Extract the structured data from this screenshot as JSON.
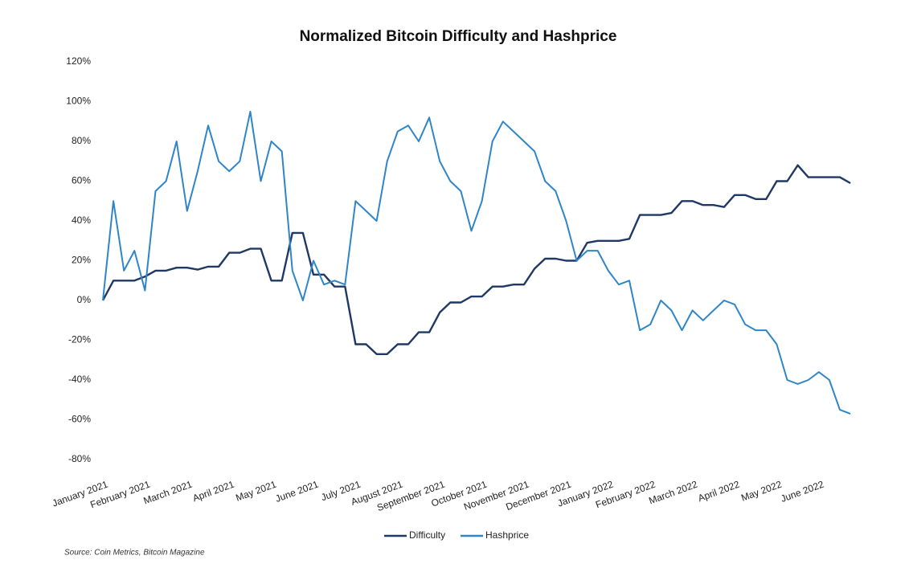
{
  "chart_data": {
    "type": "line",
    "title": "Normalized Bitcoin Difficulty and Hashprice",
    "source": "Source: Coin Metrics, Bitcoin Magazine",
    "categories": [
      "January 2021",
      null,
      null,
      null,
      "February 2021",
      null,
      null,
      null,
      "March 2021",
      null,
      null,
      null,
      "April 2021",
      null,
      null,
      null,
      "May 2021",
      null,
      null,
      null,
      "June 2021",
      null,
      null,
      null,
      "July 2021",
      null,
      null,
      null,
      "August 2021",
      null,
      null,
      null,
      "September 2021",
      null,
      null,
      null,
      "October 2021",
      null,
      null,
      null,
      "November 2021",
      null,
      null,
      null,
      "December 2021",
      null,
      null,
      null,
      "January 2022",
      null,
      null,
      null,
      "February 2022",
      null,
      null,
      null,
      "March 2022",
      null,
      null,
      null,
      "April 2022",
      null,
      null,
      null,
      "May 2022",
      null,
      null,
      null,
      "June 2022",
      null,
      null,
      null
    ],
    "series": [
      {
        "name": "Difficulty",
        "color": "#1f3864",
        "values": [
          0,
          10,
          10,
          10,
          12,
          15,
          15,
          16.5,
          16.5,
          15.5,
          17,
          17,
          24,
          24,
          26,
          26,
          10,
          10,
          34,
          34,
          13,
          13,
          7,
          7,
          -22,
          -22,
          -27,
          -27,
          -22,
          -22,
          -16,
          -16,
          -6,
          -1,
          -1,
          2,
          2,
          7,
          7,
          8,
          8,
          16,
          21,
          21,
          20,
          20,
          29,
          30,
          30,
          30,
          31,
          43,
          43,
          43,
          44,
          50,
          50,
          48,
          48,
          47,
          53,
          53,
          51,
          51,
          60,
          60,
          68,
          62,
          62,
          62,
          62,
          59
        ]
      },
      {
        "name": "Hashprice",
        "color": "#2e86c8",
        "values": [
          0,
          50,
          15,
          25,
          5,
          55,
          60,
          80,
          45,
          65,
          88,
          70,
          65,
          70,
          95,
          60,
          80,
          75,
          15,
          0,
          20,
          8,
          10,
          8,
          50,
          45,
          40,
          70,
          85,
          88,
          80,
          92,
          70,
          60,
          55,
          35,
          50,
          80,
          90,
          85,
          80,
          75,
          60,
          55,
          40,
          20,
          25,
          25,
          15,
          8,
          10,
          -15,
          -12,
          0,
          -5,
          -15,
          -5,
          -10,
          -5,
          0,
          -2,
          -12,
          -15,
          -15,
          -22,
          -40,
          -42,
          -40,
          -36,
          -40,
          -55,
          -57
        ]
      }
    ],
    "ylim": [
      -80,
      120
    ],
    "yticks": [
      {
        "value": -80,
        "label": "-80%"
      },
      {
        "value": -60,
        "label": "-60%"
      },
      {
        "value": -40,
        "label": "-40%"
      },
      {
        "value": -20,
        "label": "-20%"
      },
      {
        "value": 0,
        "label": "0%"
      },
      {
        "value": 20,
        "label": "20%"
      },
      {
        "value": 40,
        "label": "40%"
      },
      {
        "value": 60,
        "label": "60%"
      },
      {
        "value": 80,
        "label": "80%"
      },
      {
        "value": 100,
        "label": "100%"
      },
      {
        "value": 120,
        "label": "120%"
      }
    ],
    "grid": false,
    "legend": "bottom"
  }
}
